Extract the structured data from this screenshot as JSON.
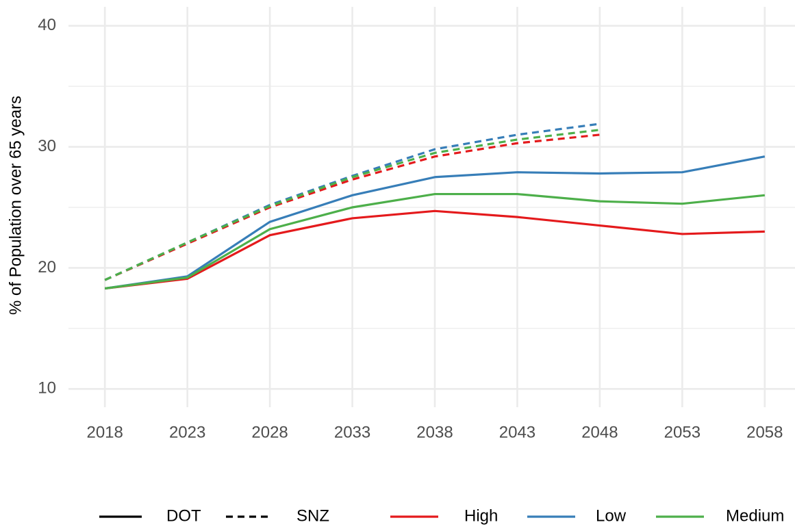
{
  "chart_data": {
    "type": "line",
    "y_label": "% of Population over 65 years",
    "xlim": [
      2016,
      2060
    ],
    "xticks": [
      2018,
      2023,
      2028,
      2033,
      2038,
      2043,
      2048,
      2053,
      2058
    ],
    "ylim": [
      9,
      41
    ],
    "yticks": [
      10,
      20,
      30,
      40
    ],
    "yminor": [
      15,
      25,
      35
    ],
    "grid": true,
    "legend": {
      "position": "bottom",
      "linetypes": [
        {
          "name": "DOT",
          "dash": "solid"
        },
        {
          "name": "SNZ",
          "dash": "dashed"
        }
      ],
      "colors": [
        {
          "name": "High",
          "color": "#e41a1c"
        },
        {
          "name": "Low",
          "color": "#377eb8"
        },
        {
          "name": "Medium",
          "color": "#4daf4a"
        }
      ]
    },
    "series": [
      {
        "name": "High",
        "linetype": "DOT",
        "color": "#e41a1c",
        "x": [
          2018,
          2023,
          2028,
          2033,
          2038,
          2043,
          2048,
          2053,
          2058
        ],
        "values": [
          18.3,
          19.1,
          22.7,
          24.1,
          24.7,
          24.2,
          23.5,
          22.8,
          23.0
        ]
      },
      {
        "name": "Low",
        "linetype": "DOT",
        "color": "#377eb8",
        "x": [
          2018,
          2023,
          2028,
          2033,
          2038,
          2043,
          2048,
          2053,
          2058
        ],
        "values": [
          18.3,
          19.3,
          23.8,
          26.0,
          27.5,
          27.9,
          27.8,
          27.9,
          29.2
        ]
      },
      {
        "name": "Medium",
        "linetype": "DOT",
        "color": "#4daf4a",
        "x": [
          2018,
          2023,
          2028,
          2033,
          2038,
          2043,
          2048,
          2053,
          2058
        ],
        "values": [
          18.3,
          19.2,
          23.2,
          25.0,
          26.1,
          26.1,
          25.5,
          25.3,
          26.0
        ]
      },
      {
        "name": "High",
        "linetype": "SNZ",
        "color": "#e41a1c",
        "x": [
          2018,
          2023,
          2028,
          2033,
          2038,
          2043,
          2048
        ],
        "values": [
          19.0,
          22.0,
          25.0,
          27.3,
          29.2,
          30.3,
          31.0
        ]
      },
      {
        "name": "Low",
        "linetype": "SNZ",
        "color": "#377eb8",
        "x": [
          2018,
          2023,
          2028,
          2033,
          2038,
          2043,
          2048
        ],
        "values": [
          19.0,
          22.1,
          25.2,
          27.6,
          29.8,
          31.0,
          31.9
        ]
      },
      {
        "name": "Medium",
        "linetype": "SNZ",
        "color": "#4daf4a",
        "x": [
          2018,
          2023,
          2028,
          2033,
          2038,
          2043,
          2048
        ],
        "values": [
          19.0,
          22.1,
          25.1,
          27.5,
          29.5,
          30.6,
          31.4
        ]
      }
    ]
  }
}
